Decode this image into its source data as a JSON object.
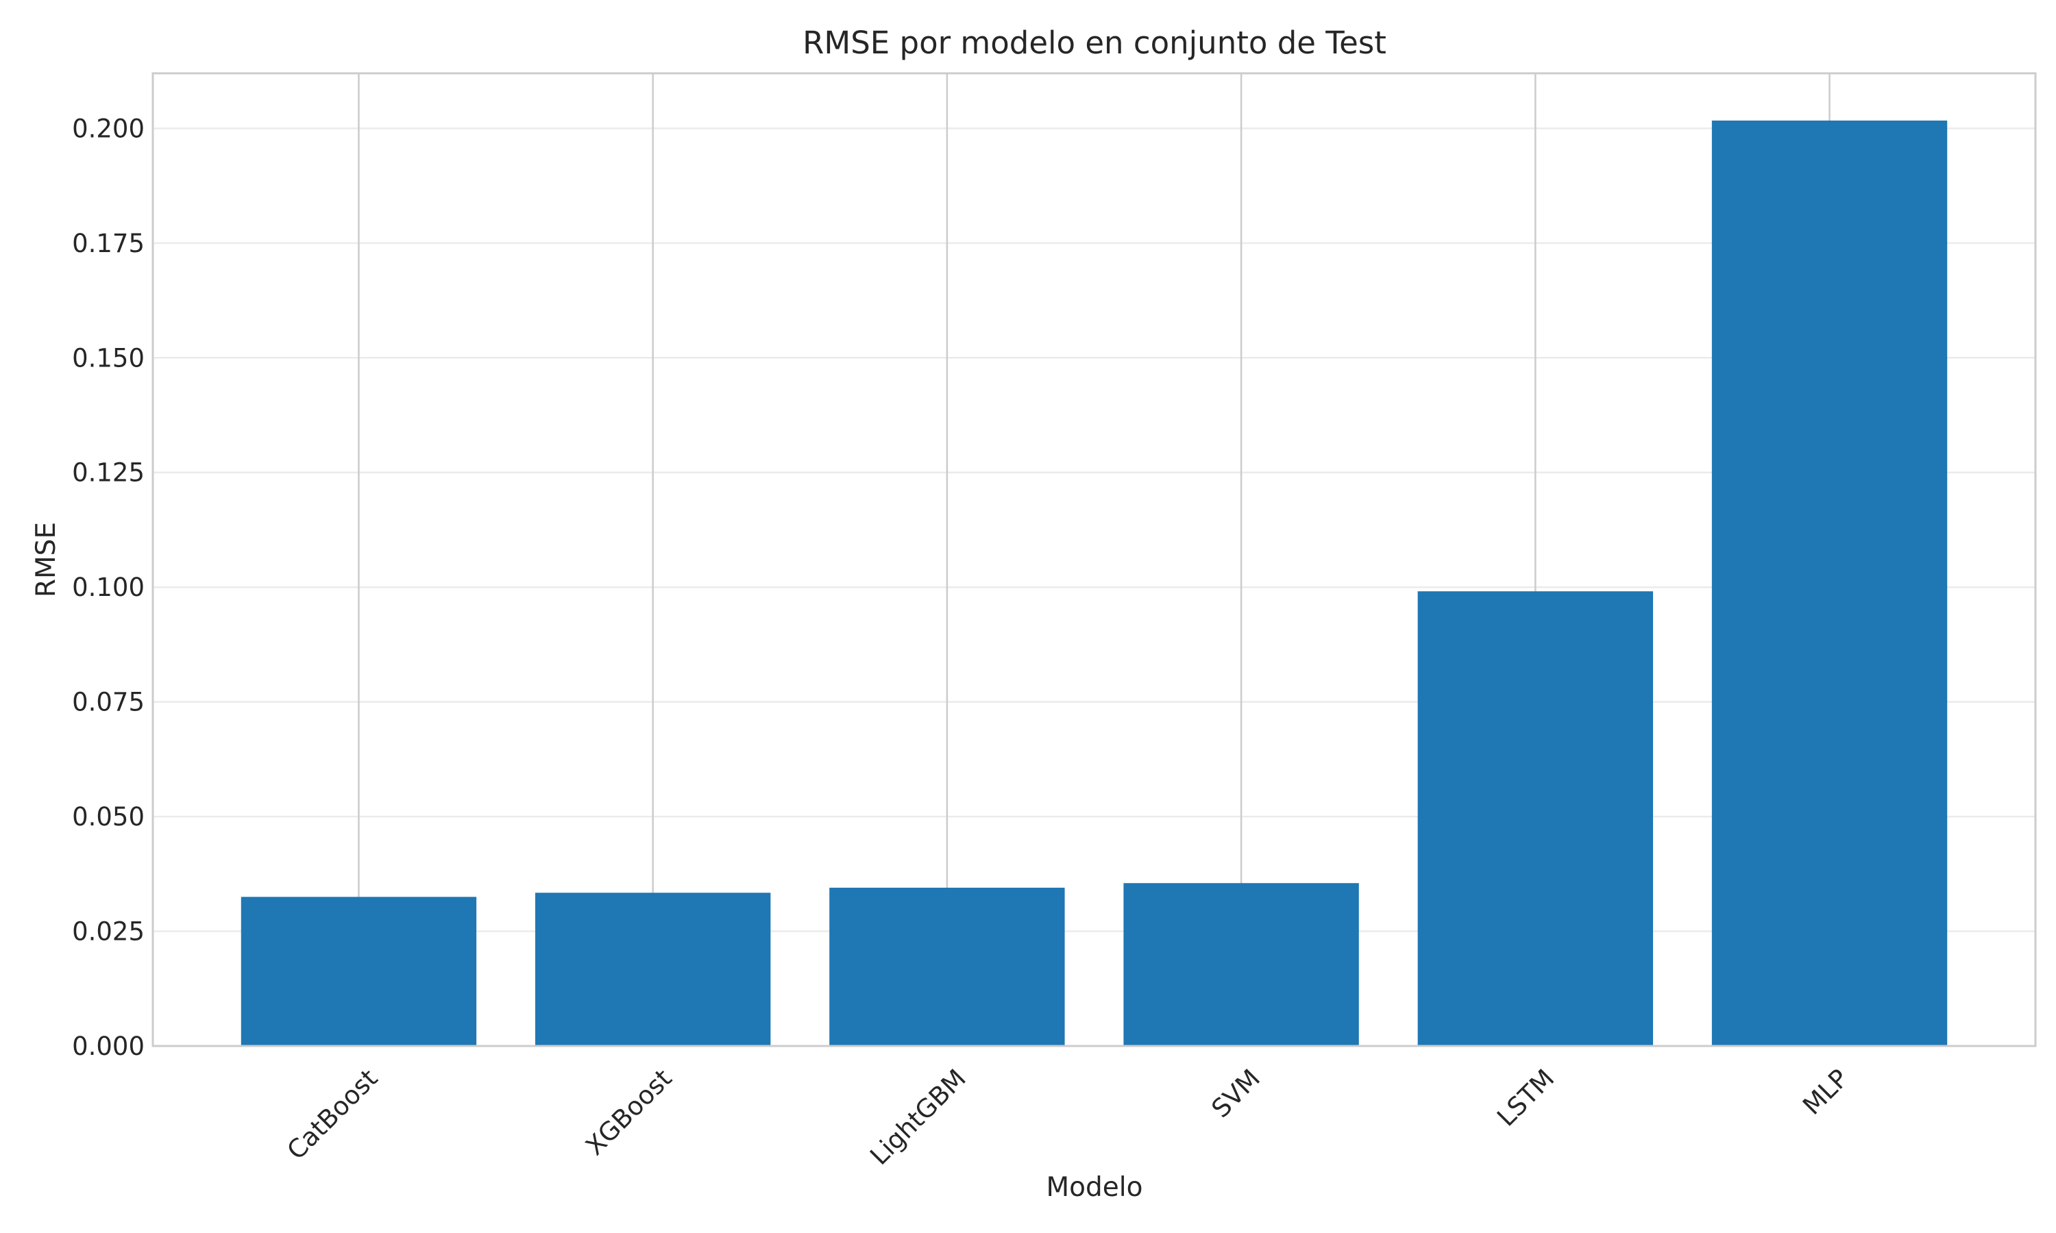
{
  "chart_data": {
    "type": "bar",
    "title": "RMSE por modelo en conjunto de Test",
    "xlabel": "Modelo",
    "ylabel": "RMSE",
    "categories": [
      "CatBoost",
      "XGBoost",
      "LightGBM",
      "SVM",
      "LSTM",
      "MLP"
    ],
    "values": [
      0.0325,
      0.0334,
      0.0345,
      0.0355,
      0.0991,
      0.2017
    ],
    "ylim": [
      0,
      0.212
    ],
    "yticks": [
      0.0,
      0.025,
      0.05,
      0.075,
      0.1,
      0.125,
      0.15,
      0.175,
      0.2
    ],
    "ytick_labels": [
      "0.000",
      "0.025",
      "0.050",
      "0.075",
      "0.100",
      "0.125",
      "0.150",
      "0.175",
      "0.200"
    ],
    "grid": true,
    "legend": false,
    "bar_color": "#1f77b4"
  }
}
